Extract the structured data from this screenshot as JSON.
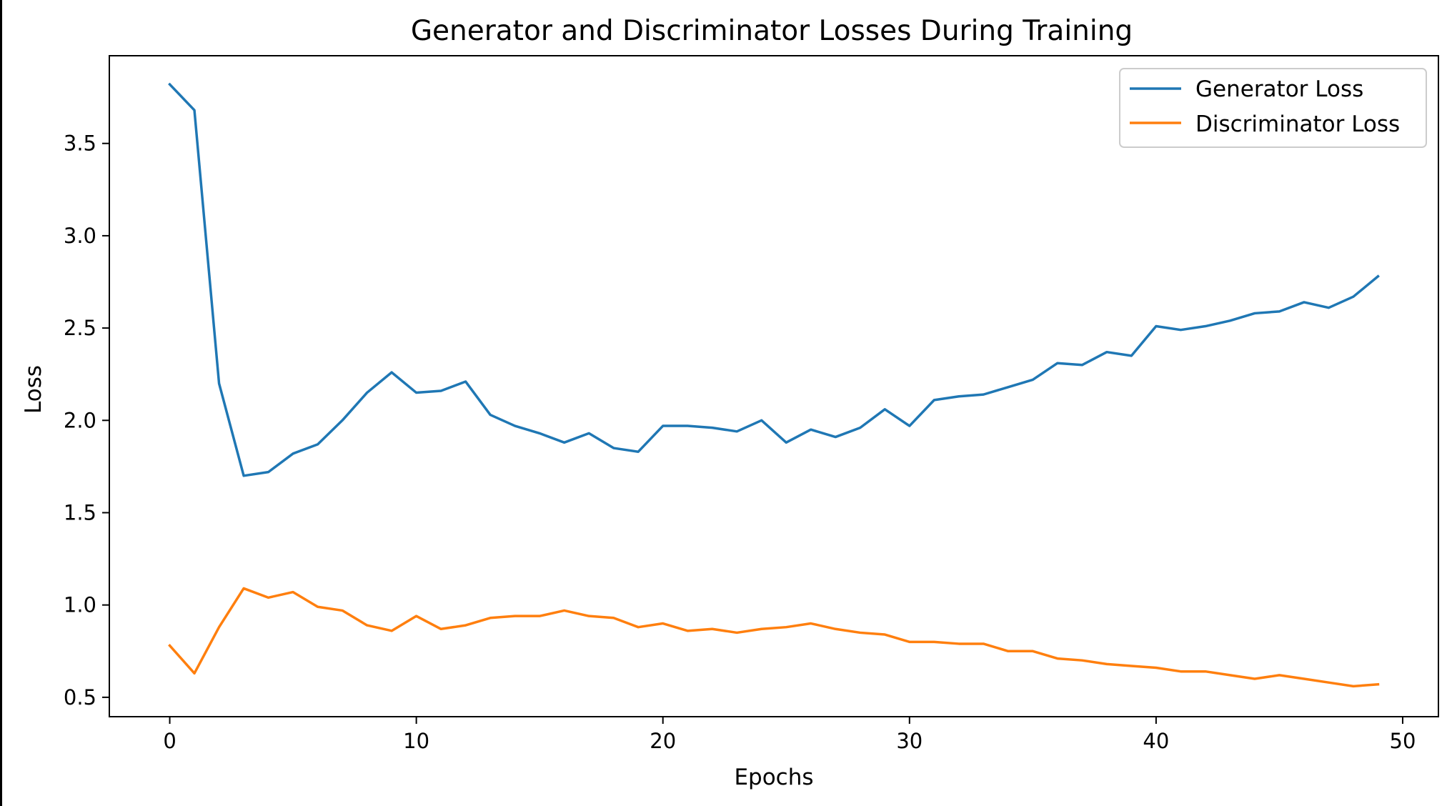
{
  "chart_data": {
    "type": "line",
    "title": "Generator and Discriminator Losses During Training",
    "xlabel": "Epochs",
    "ylabel": "Loss",
    "xlim": [
      -2.45,
      51.45
    ],
    "ylim": [
      0.395,
      3.975
    ],
    "xticks": [
      0,
      10,
      20,
      30,
      40,
      50
    ],
    "xtick_labels": [
      "0",
      "10",
      "20",
      "30",
      "40",
      "50"
    ],
    "yticks": [
      0.5,
      1.0,
      1.5,
      2.0,
      2.5,
      3.0,
      3.5
    ],
    "ytick_labels": [
      "0.5",
      "1.0",
      "1.5",
      "2.0",
      "2.5",
      "3.0",
      "3.5"
    ],
    "grid": false,
    "legend_position": "top-right",
    "x": [
      0,
      1,
      2,
      3,
      4,
      5,
      6,
      7,
      8,
      9,
      10,
      11,
      12,
      13,
      14,
      15,
      16,
      17,
      18,
      19,
      20,
      21,
      22,
      23,
      24,
      25,
      26,
      27,
      28,
      29,
      30,
      31,
      32,
      33,
      34,
      35,
      36,
      37,
      38,
      39,
      40,
      41,
      42,
      43,
      44,
      45,
      46,
      47,
      48,
      49
    ],
    "series": [
      {
        "name": "Generator Loss",
        "color": "#1f77b4",
        "values": [
          3.82,
          3.68,
          2.2,
          1.7,
          1.72,
          1.82,
          1.87,
          2.0,
          2.15,
          2.26,
          2.15,
          2.16,
          2.21,
          2.03,
          1.97,
          1.93,
          1.88,
          1.93,
          1.85,
          1.83,
          1.97,
          1.97,
          1.96,
          1.94,
          2.0,
          1.88,
          1.95,
          1.91,
          1.96,
          2.06,
          1.97,
          2.11,
          2.13,
          2.14,
          2.18,
          2.22,
          2.31,
          2.3,
          2.37,
          2.35,
          2.51,
          2.49,
          2.51,
          2.54,
          2.58,
          2.59,
          2.64,
          2.61,
          2.67,
          2.78
        ]
      },
      {
        "name": "Discriminator Loss",
        "color": "#ff7f0e",
        "values": [
          0.78,
          0.63,
          0.88,
          1.09,
          1.04,
          1.07,
          0.99,
          0.97,
          0.89,
          0.86,
          0.94,
          0.87,
          0.89,
          0.93,
          0.94,
          0.94,
          0.97,
          0.94,
          0.93,
          0.88,
          0.9,
          0.86,
          0.87,
          0.85,
          0.87,
          0.88,
          0.9,
          0.87,
          0.85,
          0.84,
          0.8,
          0.8,
          0.79,
          0.79,
          0.75,
          0.75,
          0.71,
          0.7,
          0.68,
          0.67,
          0.66,
          0.64,
          0.64,
          0.62,
          0.6,
          0.62,
          0.6,
          0.58,
          0.56,
          0.57
        ]
      }
    ]
  }
}
